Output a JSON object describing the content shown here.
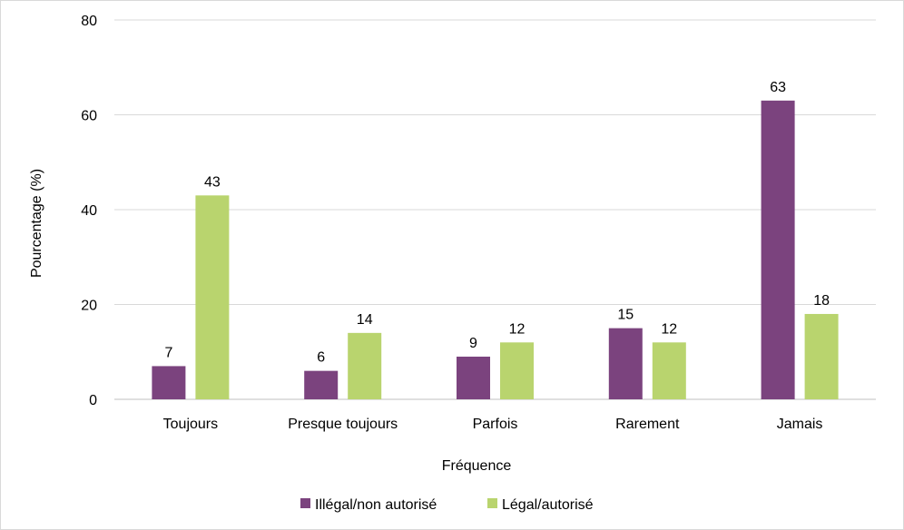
{
  "chart_data": {
    "type": "bar",
    "title": "",
    "xlabel": "Fréquence",
    "ylabel": "Pourcentage (%)",
    "ylim": [
      0,
      80
    ],
    "yticks": [
      0,
      20,
      40,
      60,
      80
    ],
    "grid": true,
    "legend_position": "bottom",
    "categories": [
      "Toujours",
      "Presque toujours",
      "Parfois",
      "Rarement",
      "Jamais"
    ],
    "series": [
      {
        "name": "Illégal/non autorisé",
        "color": "#7b437e",
        "values": [
          7,
          6,
          9,
          15,
          63
        ]
      },
      {
        "name": "Légal/autorisé",
        "color": "#b9d46e",
        "values": [
          43,
          14,
          12,
          12,
          18
        ]
      }
    ]
  }
}
